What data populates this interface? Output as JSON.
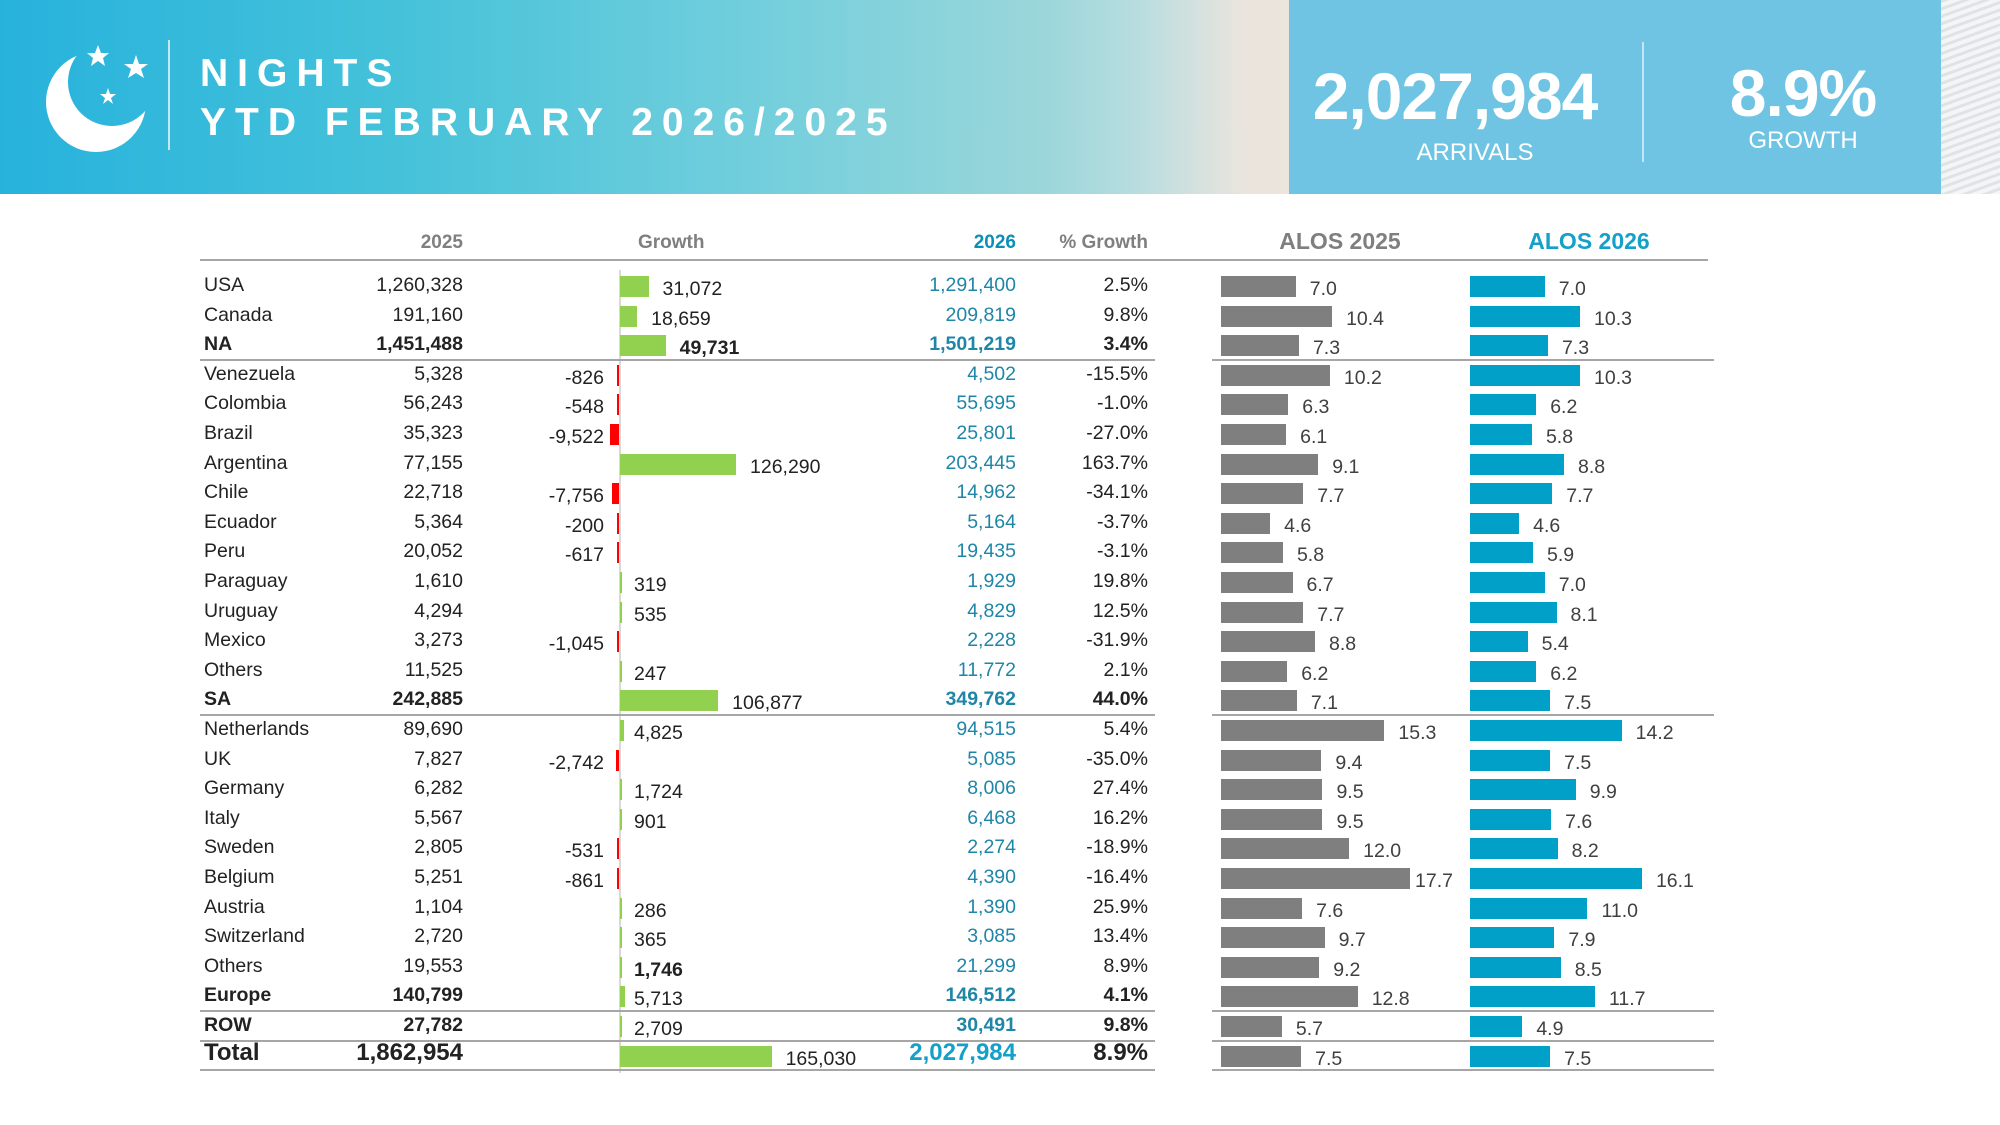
{
  "header": {
    "title_line1": "NIGHTS",
    "title_line2": "YTD FEBRUARY 2026/2025",
    "kpi_value": "2,027,984",
    "kpi_label": "ARRIVALS",
    "growth_value": "8.9%",
    "growth_label": "GROWTH",
    "logo_icon": "moon-stars-icon"
  },
  "columns": {
    "y2025": "2025",
    "growth": "Growth",
    "y2026": "2026",
    "pct_growth": "% Growth",
    "alos2025": "ALOS 2025",
    "alos2026": "ALOS 2026"
  },
  "colors": {
    "positive_bar": "#92d050",
    "negative_bar": "#ff0000",
    "alos2025_bar": "#7f7f7f",
    "alos2026_bar": "#00a0c8",
    "value_2026": "#1f86a8"
  },
  "rows": [
    {
      "name": "USA",
      "y2025": "1,260,328",
      "growth": 31072,
      "growth_label": "31,072",
      "y2026": "1,291,400",
      "pct": "2.5%",
      "alos2025": 7.0,
      "alos2026": 7.0
    },
    {
      "name": "Canada",
      "y2025": "191,160",
      "growth": 18659,
      "growth_label": "18,659",
      "y2026": "209,819",
      "pct": "9.8%",
      "alos2025": 10.4,
      "alos2026": 10.3
    },
    {
      "name": "NA",
      "y2025": "1,451,488",
      "growth": 49731,
      "growth_label": "49,731",
      "y2026": "1,501,219",
      "pct": "3.4%",
      "alos2025": 7.3,
      "alos2026": 7.3,
      "subtotal": true,
      "growth_bold": true
    },
    {
      "name": "Venezuela",
      "y2025": "5,328",
      "growth": -826,
      "growth_label": "-826",
      "y2026": "4,502",
      "pct": "-15.5%",
      "alos2025": 10.2,
      "alos2026": 10.3
    },
    {
      "name": "Colombia",
      "y2025": "56,243",
      "growth": -548,
      "growth_label": "-548",
      "y2026": "55,695",
      "pct": "-1.0%",
      "alos2025": 6.3,
      "alos2026": 6.2
    },
    {
      "name": "Brazil",
      "y2025": "35,323",
      "growth": -9522,
      "growth_label": "-9,522",
      "y2026": "25,801",
      "pct": "-27.0%",
      "alos2025": 6.1,
      "alos2026": 5.8
    },
    {
      "name": "Argentina",
      "y2025": "77,155",
      "growth": 126290,
      "growth_label": "126,290",
      "y2026": "203,445",
      "pct": "163.7%",
      "alos2025": 9.1,
      "alos2026": 8.8
    },
    {
      "name": "Chile",
      "y2025": "22,718",
      "growth": -7756,
      "growth_label": "-7,756",
      "y2026": "14,962",
      "pct": "-34.1%",
      "alos2025": 7.7,
      "alos2026": 7.7
    },
    {
      "name": "Ecuador",
      "y2025": "5,364",
      "growth": -200,
      "growth_label": "-200",
      "y2026": "5,164",
      "pct": "-3.7%",
      "alos2025": 4.6,
      "alos2026": 4.6
    },
    {
      "name": "Peru",
      "y2025": "20,052",
      "growth": -617,
      "growth_label": "-617",
      "y2026": "19,435",
      "pct": "-3.1%",
      "alos2025": 5.8,
      "alos2026": 5.9
    },
    {
      "name": "Paraguay",
      "y2025": "1,610",
      "growth": 319,
      "growth_label": "319",
      "y2026": "1,929",
      "pct": "19.8%",
      "alos2025": 6.7,
      "alos2026": 7.0
    },
    {
      "name": "Uruguay",
      "y2025": "4,294",
      "growth": 535,
      "growth_label": "535",
      "y2026": "4,829",
      "pct": "12.5%",
      "alos2025": 7.7,
      "alos2026": 8.1
    },
    {
      "name": "Mexico",
      "y2025": "3,273",
      "growth": -1045,
      "growth_label": "-1,045",
      "y2026": "2,228",
      "pct": "-31.9%",
      "alos2025": 8.8,
      "alos2026": 5.4
    },
    {
      "name": "Others",
      "y2025": "11,525",
      "growth": 247,
      "growth_label": "247",
      "y2026": "11,772",
      "pct": "2.1%",
      "alos2025": 6.2,
      "alos2026": 6.2
    },
    {
      "name": "SA",
      "y2025": "242,885",
      "growth": 106877,
      "growth_label": "106,877",
      "y2026": "349,762",
      "pct": "44.0%",
      "alos2025": 7.1,
      "alos2026": 7.5,
      "subtotal": true
    },
    {
      "name": "Netherlands",
      "y2025": "89,690",
      "growth": 4825,
      "growth_label": "4,825",
      "y2026": "94,515",
      "pct": "5.4%",
      "alos2025": 15.3,
      "alos2026": 14.2
    },
    {
      "name": "UK",
      "y2025": "7,827",
      "growth": -2742,
      "growth_label": "-2,742",
      "y2026": "5,085",
      "pct": "-35.0%",
      "alos2025": 9.4,
      "alos2026": 7.5
    },
    {
      "name": "Germany",
      "y2025": "6,282",
      "growth": 1724,
      "growth_label": "1,724",
      "y2026": "8,006",
      "pct": "27.4%",
      "alos2025": 9.5,
      "alos2026": 9.9
    },
    {
      "name": "Italy",
      "y2025": "5,567",
      "growth": 901,
      "growth_label": "901",
      "y2026": "6,468",
      "pct": "16.2%",
      "alos2025": 9.5,
      "alos2026": 7.6
    },
    {
      "name": "Sweden",
      "y2025": "2,805",
      "growth": -531,
      "growth_label": "-531",
      "y2026": "2,274",
      "pct": "-18.9%",
      "alos2025": 12.0,
      "alos2026": 8.2
    },
    {
      "name": "Belgium",
      "y2025": "5,251",
      "growth": -861,
      "growth_label": "-861",
      "y2026": "4,390",
      "pct": "-16.4%",
      "alos2025": 17.7,
      "alos2026": 16.1
    },
    {
      "name": "Austria",
      "y2025": "1,104",
      "growth": 286,
      "growth_label": "286",
      "y2026": "1,390",
      "pct": "25.9%",
      "alos2025": 7.6,
      "alos2026": 11.0
    },
    {
      "name": "Switzerland",
      "y2025": "2,720",
      "growth": 365,
      "growth_label": "365",
      "y2026": "3,085",
      "pct": "13.4%",
      "alos2025": 9.7,
      "alos2026": 7.9
    },
    {
      "name": "Others",
      "y2025": "19,553",
      "growth": 1746,
      "growth_label": "1,746",
      "y2026": "21,299",
      "pct": "8.9%",
      "alos2025": 9.2,
      "alos2026": 8.5,
      "growth_bold": true
    },
    {
      "name": "Europe",
      "y2025": "140,799",
      "growth": 5713,
      "growth_label": "5,713",
      "y2026": "146,512",
      "pct": "4.1%",
      "alos2025": 12.8,
      "alos2026": 11.7,
      "subtotal": true
    },
    {
      "name": "ROW",
      "y2025": "27,782",
      "growth": 2709,
      "growth_label": "2,709",
      "y2026": "30,491",
      "pct": "9.8%",
      "alos2025": 5.7,
      "alos2026": 4.9,
      "subtotal": true
    },
    {
      "name": "Total",
      "y2025": "1,862,954",
      "growth": 165030,
      "growth_label": "165,030",
      "y2026": "2,027,984",
      "pct": "8.9%",
      "alos2025": 7.5,
      "alos2026": 7.5,
      "subtotal": true,
      "total": true
    }
  ]
}
